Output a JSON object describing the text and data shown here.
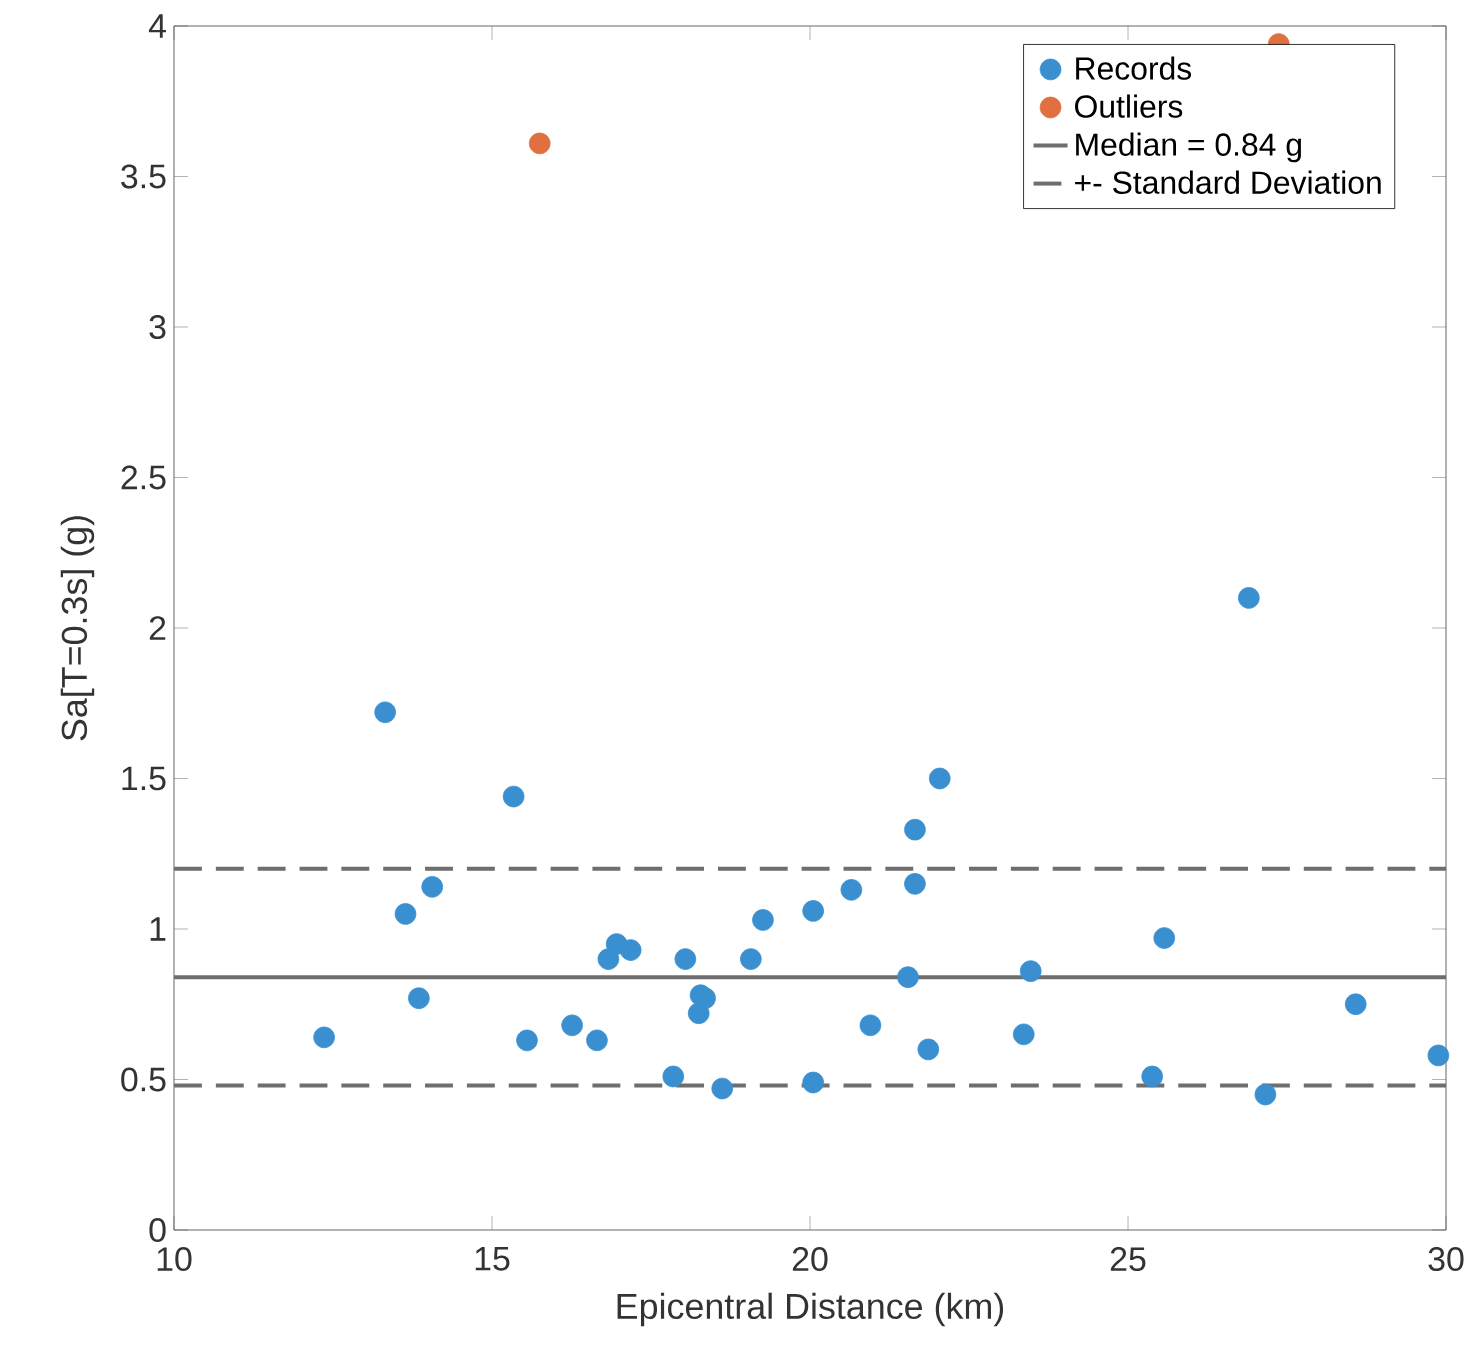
{
  "chart_data": {
    "type": "scatter",
    "xlabel": "Epicentral Distance (km)",
    "ylabel": "Sa[T=0.3s] (g)",
    "xlim": [
      10,
      30
    ],
    "ylim": [
      0,
      4
    ],
    "xticks": [
      10,
      15,
      20,
      25,
      30
    ],
    "yticks": [
      0,
      0.5,
      1,
      1.5,
      2,
      2.5,
      3,
      3.5,
      4
    ],
    "grid": false,
    "legend": "top right",
    "marker": "circle",
    "series": [
      {
        "name": "Records",
        "color": "#3a8fd0",
        "x": [
          12.36,
          13.32,
          13.64,
          14.06,
          13.85,
          15.34,
          15.55,
          16.26,
          16.65,
          16.83,
          16.96,
          17.18,
          18.04,
          18.28,
          18.35,
          18.25,
          17.85,
          18.62,
          19.07,
          19.26,
          20.05,
          20.05,
          20.65,
          20.95,
          21.54,
          21.65,
          21.65,
          22.04,
          21.86,
          23.36,
          23.47,
          25.38,
          25.57,
          27.16,
          28.58,
          29.88,
          26.9
        ],
        "values": [
          0.64,
          1.72,
          1.05,
          1.14,
          0.77,
          1.44,
          0.63,
          0.68,
          0.63,
          0.9,
          0.95,
          0.93,
          0.9,
          0.78,
          0.77,
          0.72,
          0.51,
          0.47,
          0.9,
          1.03,
          1.06,
          0.49,
          1.13,
          0.68,
          0.84,
          1.15,
          1.33,
          1.5,
          0.6,
          0.65,
          0.86,
          0.51,
          0.97,
          0.45,
          0.75,
          0.58,
          2.1
        ]
      },
      {
        "name": "Outliers",
        "color": "#e07040",
        "x": [
          15.75,
          27.37
        ],
        "values": [
          3.61,
          3.94
        ]
      }
    ],
    "ref_lines": [
      {
        "axis": "y",
        "value": 0.84,
        "label": "Median = 0.84 g",
        "color": "#6e6e6e",
        "line_style": "solid"
      },
      {
        "axis": "y",
        "value": 1.2,
        "label": "+- Standard Deviation",
        "color": "#6e6e6e",
        "line_style": "dashed"
      },
      {
        "axis": "y",
        "value": 0.48,
        "label": null,
        "color": "#6e6e6e",
        "line_style": "dashed"
      }
    ]
  }
}
